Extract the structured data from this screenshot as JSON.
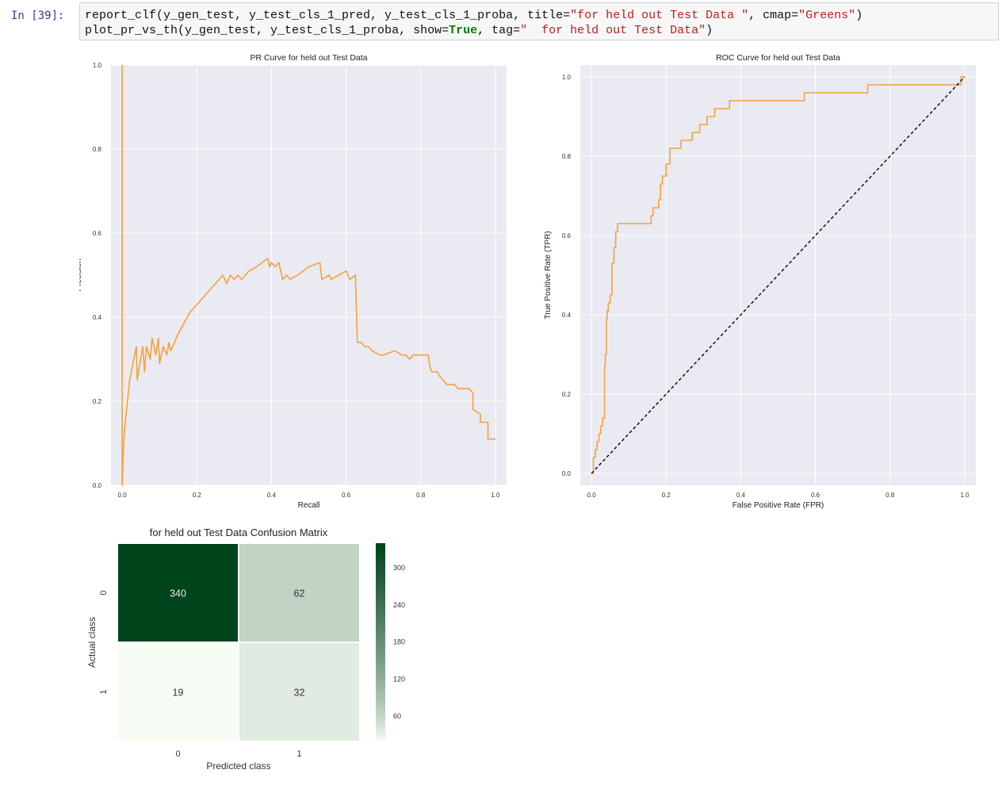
{
  "notebook": {
    "prompt": "In [39]:",
    "code_lines": [
      [
        {
          "t": "report_clf(y_gen_test, y_test_cls_1_pred, y_test_cls_1_proba, title=",
          "c": ""
        },
        {
          "t": "\"for held out Test Data \"",
          "c": "str"
        },
        {
          "t": ", cmap=",
          "c": ""
        },
        {
          "t": "\"Greens\"",
          "c": "str"
        },
        {
          "t": ")",
          "c": ""
        }
      ],
      [
        {
          "t": "plot_pr_vs_th(y_gen_test, y_test_cls_1_proba, show=",
          "c": ""
        },
        {
          "t": "True",
          "c": "kw"
        },
        {
          "t": ", tag=",
          "c": ""
        },
        {
          "t": "\"  for held out Test Data\"",
          "c": "str"
        },
        {
          "t": ")",
          "c": ""
        }
      ]
    ]
  },
  "chart_data": [
    {
      "type": "line",
      "title": "PR Curve for held out Test Data",
      "xlabel": "Recall",
      "ylabel": "Precision",
      "xlim": [
        -0.03,
        1.03
      ],
      "ylim": [
        0.0,
        1.0
      ],
      "xticks": [
        "0.0",
        "0.2",
        "0.4",
        "0.6",
        "0.8",
        "1.0"
      ],
      "yticks": [
        "0.0",
        "0.2",
        "0.4",
        "0.6",
        "0.8",
        "1.0"
      ],
      "grid": true,
      "color": "#f5a23a",
      "series": [
        {
          "x": [
            0.0,
            0.0,
            0.0,
            0.005,
            0.02,
            0.038,
            0.04,
            0.055,
            0.06,
            0.065,
            0.075,
            0.08,
            0.09,
            0.097,
            0.1,
            0.11,
            0.12,
            0.125,
            0.13,
            0.135,
            0.14,
            0.15,
            0.18,
            0.22,
            0.27,
            0.28,
            0.29,
            0.3,
            0.31,
            0.32,
            0.34,
            0.36,
            0.39,
            0.395,
            0.4,
            0.41,
            0.42,
            0.43,
            0.44,
            0.45,
            0.47,
            0.5,
            0.53,
            0.535,
            0.555,
            0.56,
            0.58,
            0.6,
            0.61,
            0.625,
            0.63,
            0.63,
            0.64,
            0.65,
            0.66,
            0.67,
            0.69,
            0.7,
            0.73,
            0.75,
            0.76,
            0.77,
            0.78,
            0.8,
            0.82,
            0.825,
            0.83,
            0.845,
            0.85,
            0.86,
            0.87,
            0.88,
            0.89,
            0.9,
            0.91,
            0.92,
            0.93,
            0.94,
            0.94,
            0.96,
            0.96,
            0.98,
            0.98,
            1.0
          ],
          "y": [
            1.0,
            0.0,
            0.0,
            0.12,
            0.25,
            0.33,
            0.25,
            0.33,
            0.27,
            0.33,
            0.3,
            0.35,
            0.31,
            0.35,
            0.29,
            0.33,
            0.31,
            0.34,
            0.32,
            0.33,
            0.34,
            0.36,
            0.41,
            0.45,
            0.5,
            0.48,
            0.5,
            0.49,
            0.5,
            0.49,
            0.51,
            0.52,
            0.54,
            0.52,
            0.53,
            0.52,
            0.53,
            0.49,
            0.5,
            0.49,
            0.5,
            0.52,
            0.53,
            0.49,
            0.5,
            0.49,
            0.5,
            0.51,
            0.49,
            0.5,
            0.35,
            0.34,
            0.34,
            0.33,
            0.33,
            0.32,
            0.31,
            0.31,
            0.32,
            0.31,
            0.31,
            0.3,
            0.31,
            0.31,
            0.31,
            0.28,
            0.27,
            0.27,
            0.26,
            0.25,
            0.24,
            0.24,
            0.24,
            0.23,
            0.23,
            0.23,
            0.23,
            0.22,
            0.18,
            0.17,
            0.15,
            0.15,
            0.11,
            0.11
          ]
        }
      ]
    },
    {
      "type": "line",
      "title": "ROC Curve for held out Test Data",
      "xlabel": "False Positive Rate (FPR)",
      "ylabel": "True Positive Rate (TPR)",
      "xlim": [
        -0.03,
        1.03
      ],
      "ylim": [
        -0.03,
        1.03
      ],
      "xticks": [
        "0.0",
        "0.2",
        "0.4",
        "0.6",
        "0.8",
        "1.0"
      ],
      "yticks": [
        "0.0",
        "0.2",
        "0.4",
        "0.6",
        "0.8",
        "1.0"
      ],
      "grid": true,
      "series": [
        {
          "color": "#f5a23a",
          "style": "solid",
          "x": [
            0.0,
            0.005,
            0.005,
            0.01,
            0.01,
            0.015,
            0.015,
            0.02,
            0.02,
            0.025,
            0.025,
            0.03,
            0.03,
            0.035,
            0.035,
            0.037,
            0.037,
            0.04,
            0.04,
            0.042,
            0.042,
            0.045,
            0.045,
            0.05,
            0.05,
            0.055,
            0.055,
            0.06,
            0.06,
            0.065,
            0.065,
            0.07,
            0.07,
            0.075,
            0.075,
            0.08,
            0.08,
            0.09,
            0.09,
            0.16,
            0.16,
            0.165,
            0.165,
            0.17,
            0.17,
            0.18,
            0.18,
            0.185,
            0.185,
            0.19,
            0.19,
            0.2,
            0.2,
            0.205,
            0.205,
            0.21,
            0.21,
            0.225,
            0.225,
            0.24,
            0.24,
            0.27,
            0.27,
            0.29,
            0.29,
            0.31,
            0.31,
            0.33,
            0.33,
            0.35,
            0.35,
            0.37,
            0.37,
            0.38,
            0.38,
            0.4,
            0.4,
            0.57,
            0.57,
            0.74,
            0.74,
            0.99,
            0.99,
            1.0
          ],
          "y": [
            0.0,
            0.0,
            0.04,
            0.04,
            0.06,
            0.06,
            0.08,
            0.08,
            0.1,
            0.1,
            0.12,
            0.12,
            0.14,
            0.14,
            0.27,
            0.27,
            0.3,
            0.3,
            0.39,
            0.39,
            0.41,
            0.41,
            0.43,
            0.43,
            0.45,
            0.45,
            0.53,
            0.53,
            0.57,
            0.57,
            0.61,
            0.61,
            0.63,
            0.63,
            0.63,
            0.63,
            0.63,
            0.63,
            0.63,
            0.63,
            0.65,
            0.65,
            0.67,
            0.67,
            0.67,
            0.67,
            0.69,
            0.69,
            0.73,
            0.73,
            0.75,
            0.75,
            0.78,
            0.78,
            0.78,
            0.78,
            0.82,
            0.82,
            0.82,
            0.82,
            0.84,
            0.84,
            0.86,
            0.86,
            0.88,
            0.88,
            0.9,
            0.9,
            0.92,
            0.92,
            0.92,
            0.92,
            0.94,
            0.94,
            0.94,
            0.94,
            0.94,
            0.94,
            0.96,
            0.96,
            0.98,
            0.98,
            1.0,
            1.0
          ]
        },
        {
          "color": "#111111",
          "style": "dashed",
          "x": [
            0.0,
            1.0
          ],
          "y": [
            0.0,
            1.0
          ]
        }
      ]
    },
    {
      "type": "heatmap",
      "title": "for held out Test Data  Confusion Matrix",
      "xlabel": "Predicted class",
      "ylabel": "Actual class",
      "xticks": [
        "0",
        "1"
      ],
      "yticks": [
        "0",
        "1"
      ],
      "matrix": [
        [
          340,
          62
        ],
        [
          19,
          32
        ]
      ],
      "cmap": "Greens",
      "colorbar_ticks": [
        "300",
        "240",
        "180",
        "120",
        "60"
      ],
      "colorbar_values": [
        300,
        240,
        180,
        120,
        60
      ],
      "vmin": 19,
      "vmax": 340
    }
  ]
}
